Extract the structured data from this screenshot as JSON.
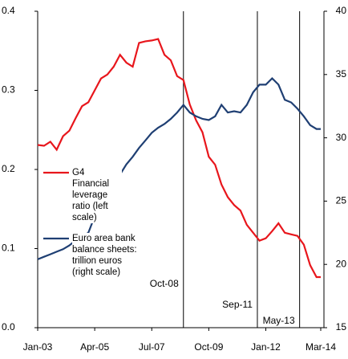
{
  "chart_data": {
    "type": "line",
    "x": [
      "Jan-03",
      "Apr-03",
      "Jul-03",
      "Oct-03",
      "Jan-04",
      "Apr-04",
      "Jul-04",
      "Oct-04",
      "Jan-05",
      "Apr-05",
      "Jul-05",
      "Oct-05",
      "Jan-06",
      "Apr-06",
      "Jul-06",
      "Oct-06",
      "Jan-07",
      "Apr-07",
      "Jul-07",
      "Oct-07",
      "Jan-08",
      "Apr-08",
      "Jul-08",
      "Oct-08",
      "Jan-09",
      "Apr-09",
      "Jul-09",
      "Oct-09",
      "Jan-10",
      "Apr-10",
      "Jul-10",
      "Oct-10",
      "Jan-11",
      "Apr-11",
      "Jul-11",
      "Oct-11",
      "Jan-12",
      "Apr-12",
      "Jul-12",
      "Oct-12",
      "Jan-13",
      "Apr-13",
      "Jul-13",
      "Oct-13",
      "Jan-14",
      "Mar-14"
    ],
    "series": [
      {
        "name": "G4 Financial leverage ratio (left scale)",
        "color": "#e8161c",
        "values": [
          0.231,
          0.23,
          0.235,
          0.225,
          0.242,
          0.249,
          0.265,
          0.28,
          0.285,
          0.3,
          0.315,
          0.32,
          0.33,
          0.345,
          0.335,
          0.33,
          0.36,
          0.362,
          0.363,
          0.365,
          0.345,
          0.338,
          0.318,
          0.313,
          0.282,
          0.262,
          0.247,
          0.216,
          0.206,
          0.181,
          0.165,
          0.155,
          0.148,
          0.13,
          0.12,
          0.11,
          0.113,
          0.122,
          0.132,
          0.12,
          0.118,
          0.116,
          0.105,
          0.079,
          0.064,
          0.064
        ]
      },
      {
        "name": "Euro area bank balance sheets: trillion euros (right scale)",
        "color": "#1f3f73",
        "axis": "y2",
        "values": [
          20.4,
          20.6,
          20.8,
          21.0,
          21.2,
          21.5,
          21.9,
          22.2,
          22.5,
          23.8,
          24.7,
          25.5,
          26.3,
          27.1,
          27.9,
          28.5,
          29.2,
          29.8,
          30.4,
          30.8,
          31.1,
          31.5,
          32,
          32.6,
          32,
          31.7,
          31.5,
          31.4,
          31.7,
          32.6,
          32,
          32.1,
          32,
          32.6,
          33.6,
          34.2,
          34.2,
          34.7,
          34.2,
          33,
          32.8,
          32.3,
          31.7,
          31,
          30.7,
          30.7
        ]
      }
    ],
    "xticks": [
      "Jan-03",
      "Apr-05",
      "Jul-07",
      "Oct-09",
      "Jan-12",
      "Mar-14"
    ],
    "ylim": [
      0,
      0.4
    ],
    "yticks": [
      {
        "value": 0,
        "label": "0.0"
      },
      0.1,
      0.2,
      0.3,
      0.4
    ],
    "y2lim": [
      15,
      40
    ],
    "y2ticks": [
      15,
      20,
      25,
      30,
      35,
      40
    ],
    "events": [
      "Oct-08",
      "Sep-11",
      "May-13"
    ]
  }
}
